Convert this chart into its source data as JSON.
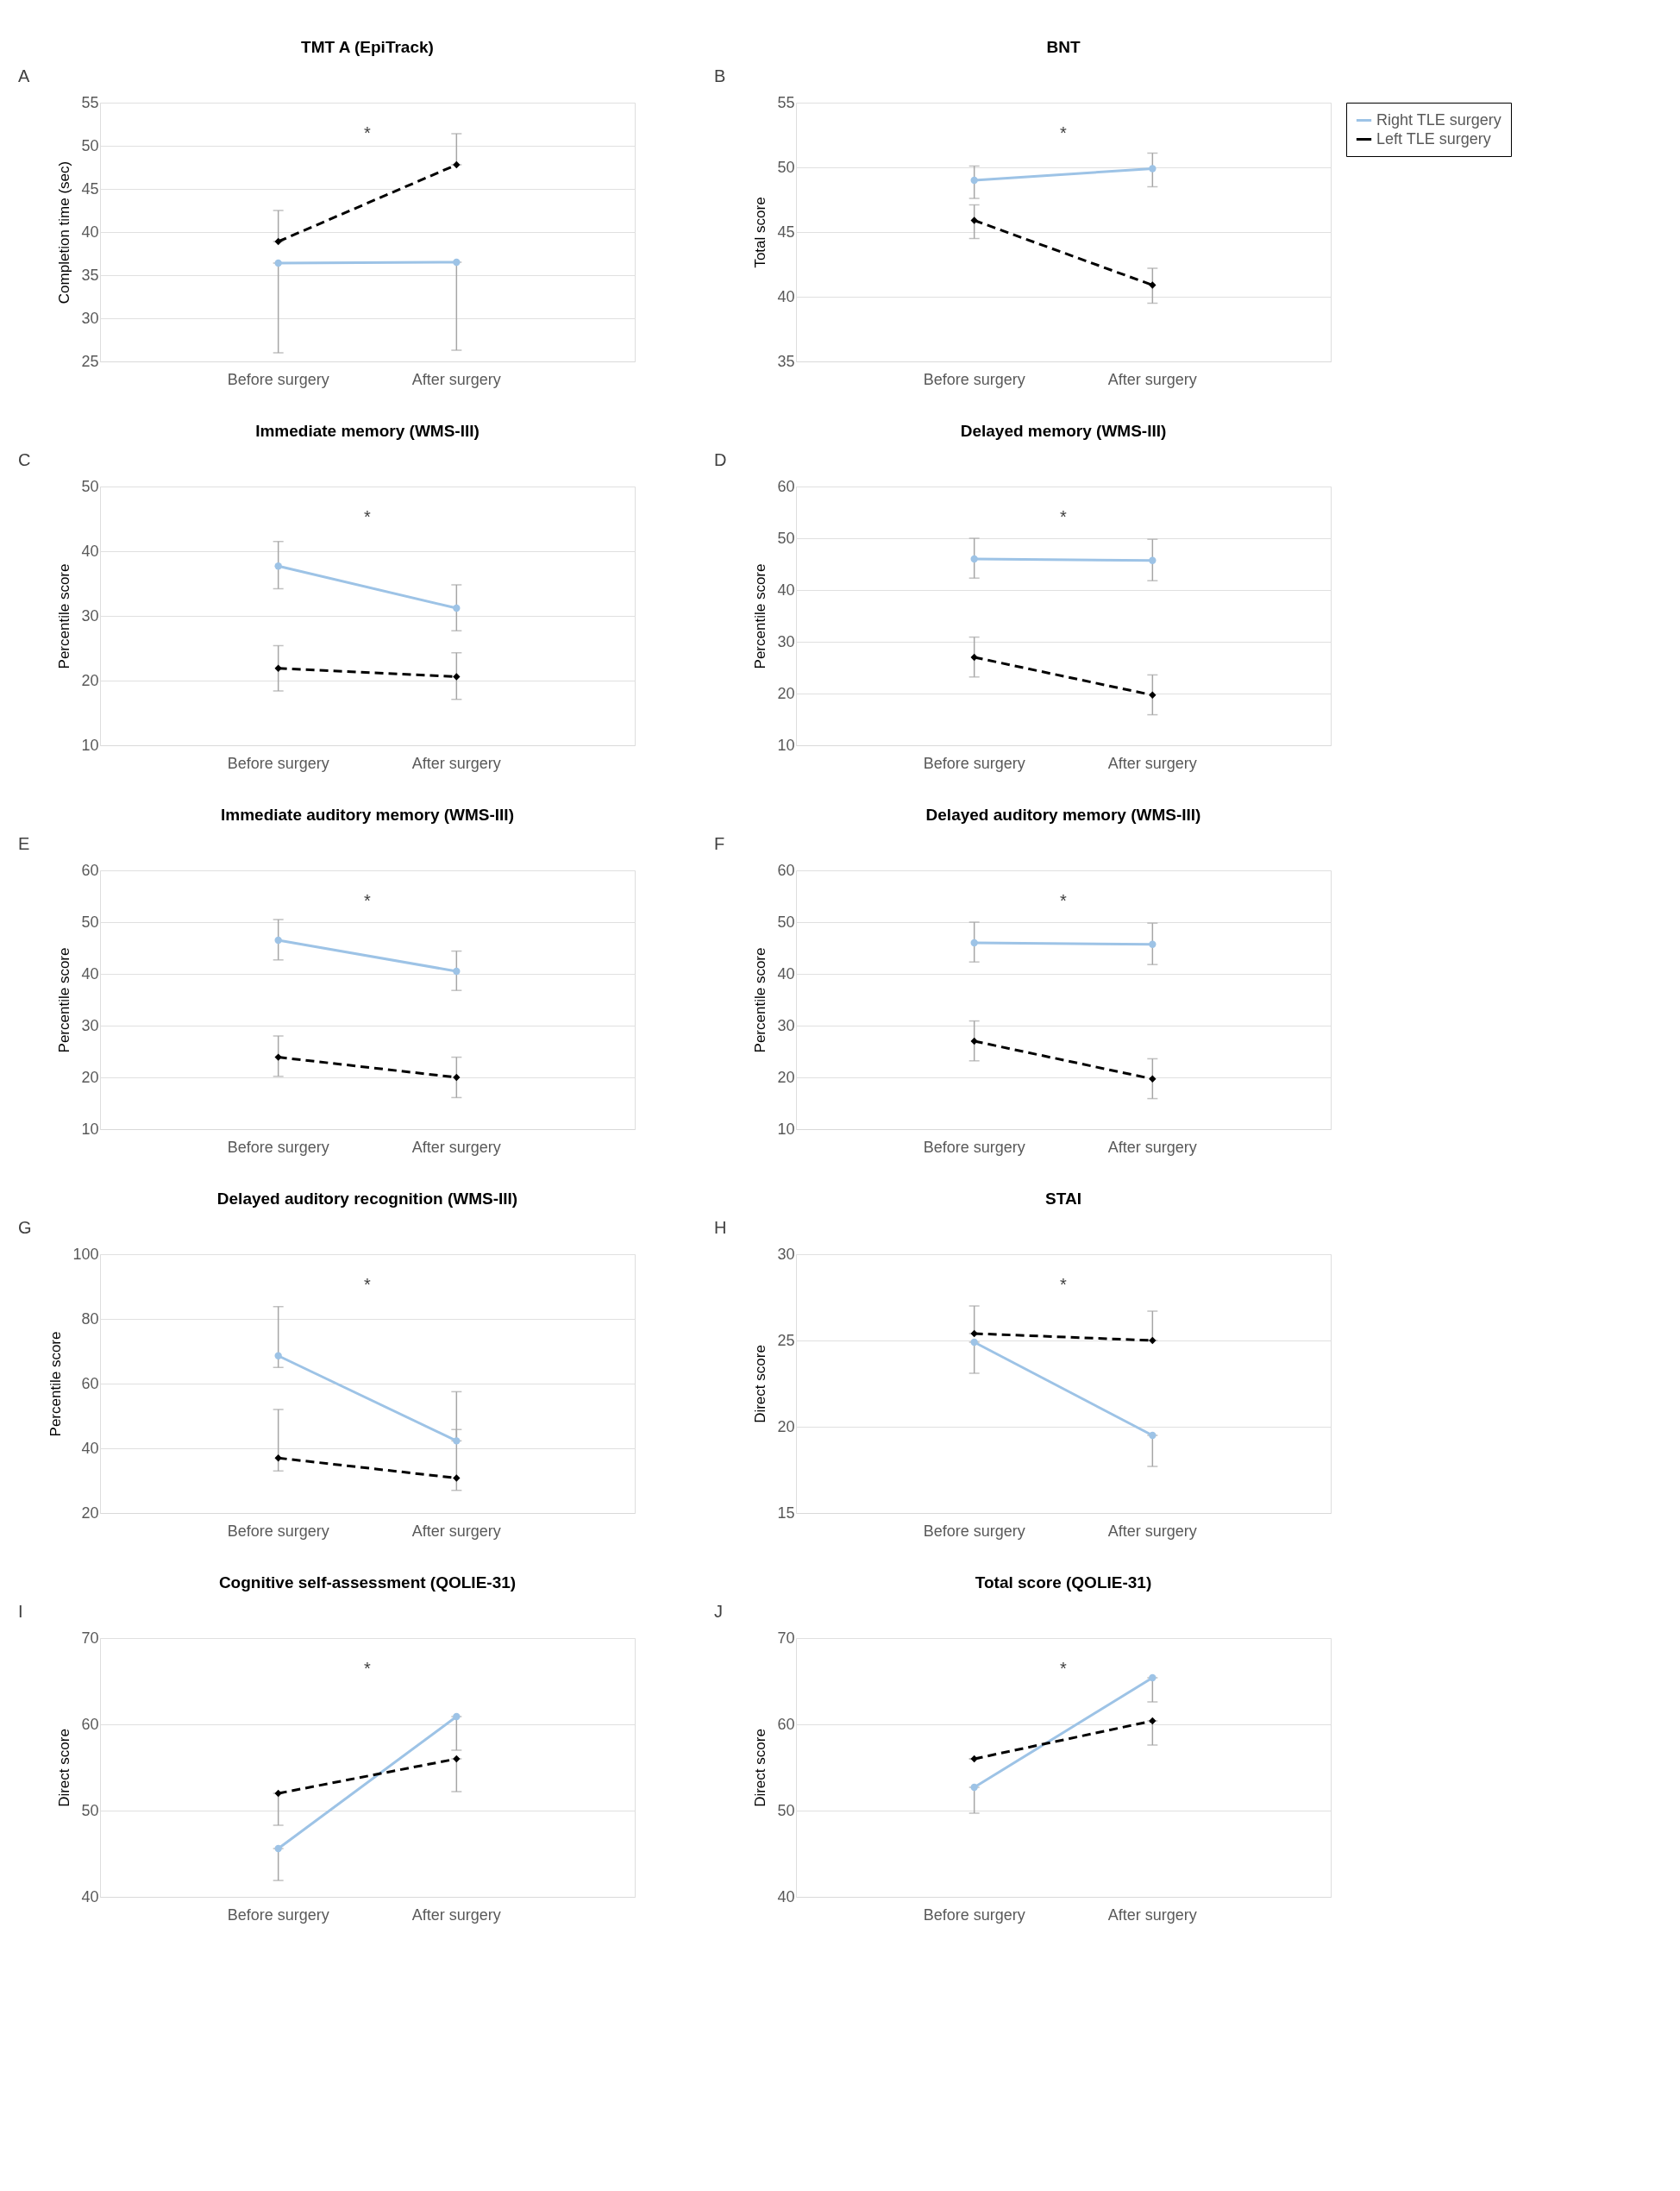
{
  "chart_data": [
    {
      "type": "line",
      "title": "TMT A (EpiTrack)",
      "ylabel": "Completion time (sec)",
      "categories": [
        "Before surgery",
        "After surgery"
      ],
      "ylim": [
        25,
        55
      ],
      "yticks": [
        25,
        30,
        35,
        40,
        45,
        50,
        55
      ],
      "grid": "y",
      "annotations": [
        "A",
        "*"
      ],
      "series": [
        {
          "color": "#9dc3e6",
          "marker": "circle",
          "line_style": "solid",
          "values": [
            36.4,
            36.5
          ],
          "errors": [
            [
              26.0,
              36.4
            ],
            [
              26.3,
              36.5
            ]
          ]
        },
        {
          "color": "#000000",
          "marker": "diamond",
          "line_style": "dashed",
          "values": [
            38.9,
            47.8
          ],
          "errors": [
            [
              38.9,
              42.5
            ],
            [
              47.8,
              51.4
            ]
          ]
        }
      ]
    },
    {
      "type": "line",
      "title": "BNT",
      "ylabel": "Total score",
      "categories": [
        "Before surgery",
        "After surgery"
      ],
      "ylim": [
        35,
        55
      ],
      "yticks": [
        35,
        40,
        45,
        50,
        55
      ],
      "grid": "y",
      "legend": "right",
      "annotations": [
        "B",
        "*"
      ],
      "series": [
        {
          "name": "Right TLE surgery",
          "color": "#9dc3e6",
          "marker": "circle",
          "line_style": "solid",
          "values": [
            49.0,
            49.9
          ],
          "errors": [
            [
              47.6,
              50.1
            ],
            [
              48.5,
              51.1
            ]
          ]
        },
        {
          "name": "Left TLE surgery",
          "color": "#000000",
          "marker": "diamond",
          "line_style": "dashed",
          "values": [
            45.9,
            40.9
          ],
          "errors": [
            [
              44.5,
              47.1
            ],
            [
              39.5,
              42.2
            ]
          ]
        }
      ]
    },
    {
      "type": "line",
      "title": "Immediate memory (WMS-III)",
      "ylabel": "Percentile score",
      "categories": [
        "Before surgery",
        "After surgery"
      ],
      "ylim": [
        10,
        50
      ],
      "yticks": [
        10,
        20,
        30,
        40,
        50
      ],
      "grid": "y",
      "annotations": [
        "C",
        "*"
      ],
      "series": [
        {
          "color": "#9dc3e6",
          "marker": "circle",
          "line_style": "solid",
          "values": [
            37.7,
            31.2
          ],
          "errors": [
            [
              34.2,
              41.5
            ],
            [
              27.7,
              34.8
            ]
          ]
        },
        {
          "color": "#000000",
          "marker": "diamond",
          "line_style": "dashed",
          "values": [
            21.9,
            20.6
          ],
          "errors": [
            [
              18.4,
              25.4
            ],
            [
              17.1,
              24.3
            ]
          ]
        }
      ]
    },
    {
      "type": "line",
      "title": "Delayed memory (WMS-III)",
      "ylabel": "Percentile score",
      "categories": [
        "Before surgery",
        "After surgery"
      ],
      "ylim": [
        10,
        60
      ],
      "yticks": [
        10,
        20,
        30,
        40,
        50,
        60
      ],
      "grid": "y",
      "annotations": [
        "D",
        "*"
      ],
      "series": [
        {
          "color": "#9dc3e6",
          "marker": "circle",
          "line_style": "solid",
          "values": [
            46.0,
            45.7
          ],
          "errors": [
            [
              42.3,
              50.0
            ],
            [
              41.8,
              49.8
            ]
          ]
        },
        {
          "color": "#000000",
          "marker": "diamond",
          "line_style": "dashed",
          "values": [
            27.0,
            19.7
          ],
          "errors": [
            [
              23.2,
              30.9
            ],
            [
              15.9,
              23.6
            ]
          ]
        }
      ]
    },
    {
      "type": "line",
      "title": "Immediate auditory memory (WMS-III)",
      "ylabel": "Percentile score",
      "categories": [
        "Before surgery",
        "After surgery"
      ],
      "ylim": [
        10,
        60
      ],
      "yticks": [
        10,
        20,
        30,
        40,
        50,
        60
      ],
      "grid": "y",
      "annotations": [
        "E",
        "*"
      ],
      "series": [
        {
          "color": "#9dc3e6",
          "marker": "circle",
          "line_style": "solid",
          "values": [
            46.5,
            40.5
          ],
          "errors": [
            [
              42.7,
              50.5
            ],
            [
              36.8,
              44.4
            ]
          ]
        },
        {
          "color": "#000000",
          "marker": "diamond",
          "line_style": "dashed",
          "values": [
            23.9,
            20.0
          ],
          "errors": [
            [
              20.2,
              28.0
            ],
            [
              16.1,
              23.9
            ]
          ]
        }
      ]
    },
    {
      "type": "line",
      "title": "Delayed auditory memory (WMS-III)",
      "ylabel": "Percentile score",
      "categories": [
        "Before surgery",
        "After surgery"
      ],
      "ylim": [
        10,
        60
      ],
      "yticks": [
        10,
        20,
        30,
        40,
        50,
        60
      ],
      "grid": "y",
      "annotations": [
        "F",
        "*"
      ],
      "series": [
        {
          "color": "#9dc3e6",
          "marker": "circle",
          "line_style": "solid",
          "values": [
            46.0,
            45.7
          ],
          "errors": [
            [
              42.3,
              50.0
            ],
            [
              41.8,
              49.8
            ]
          ]
        },
        {
          "color": "#000000",
          "marker": "diamond",
          "line_style": "dashed",
          "values": [
            27.0,
            19.7
          ],
          "errors": [
            [
              23.2,
              30.9
            ],
            [
              15.9,
              23.6
            ]
          ]
        }
      ]
    },
    {
      "type": "line",
      "title": "Delayed auditory recognition (WMS-III)",
      "ylabel": "Percentile score",
      "categories": [
        "Before surgery",
        "After surgery"
      ],
      "ylim": [
        20,
        100
      ],
      "yticks": [
        20,
        40,
        60,
        80,
        100
      ],
      "grid": "y",
      "annotations": [
        "G",
        "*"
      ],
      "series": [
        {
          "color": "#9dc3e6",
          "marker": "circle",
          "line_style": "solid",
          "values": [
            68.6,
            42.3
          ],
          "errors": [
            [
              65.0,
              83.8
            ],
            [
              42.3,
              57.5
            ]
          ]
        },
        {
          "color": "#000000",
          "marker": "diamond",
          "line_style": "dashed",
          "values": [
            37.0,
            30.8
          ],
          "errors": [
            [
              33.0,
              52.0
            ],
            [
              27.0,
              45.8
            ]
          ]
        }
      ]
    },
    {
      "type": "line",
      "title": "STAI",
      "ylabel": "Direct score",
      "categories": [
        "Before surgery",
        "After surgery"
      ],
      "ylim": [
        15,
        30
      ],
      "yticks": [
        15,
        20,
        25,
        30
      ],
      "grid": "y",
      "annotations": [
        "H",
        "*"
      ],
      "series": [
        {
          "color": "#000000",
          "marker": "diamond",
          "line_style": "dashed",
          "values": [
            25.4,
            25.0
          ],
          "errors": [
            [
              25.4,
              27.0
            ],
            [
              25.0,
              26.7
            ]
          ]
        },
        {
          "color": "#9dc3e6",
          "marker": "circle",
          "line_style": "solid",
          "values": [
            24.9,
            19.5
          ],
          "errors": [
            [
              23.1,
              24.9
            ],
            [
              17.7,
              19.5
            ]
          ]
        }
      ]
    },
    {
      "type": "line",
      "title": "Cognitive self-assessment (QOLIE-31)",
      "ylabel": "Direct score",
      "categories": [
        "Before surgery",
        "After surgery"
      ],
      "ylim": [
        40,
        70
      ],
      "yticks": [
        40,
        50,
        60,
        70
      ],
      "grid": "y",
      "annotations": [
        "I",
        "*"
      ],
      "series": [
        {
          "color": "#9dc3e6",
          "marker": "circle",
          "line_style": "solid",
          "values": [
            45.6,
            60.9
          ],
          "errors": [
            [
              41.9,
              45.6
            ],
            [
              57.0,
              60.9
            ]
          ]
        },
        {
          "color": "#000000",
          "marker": "diamond",
          "line_style": "dashed",
          "values": [
            52.0,
            56.0
          ],
          "errors": [
            [
              48.3,
              52.0
            ],
            [
              52.2,
              56.0
            ]
          ]
        }
      ]
    },
    {
      "type": "line",
      "title": "Total score (QOLIE-31)",
      "ylabel": "Direct score",
      "categories": [
        "Before surgery",
        "After surgery"
      ],
      "ylim": [
        40,
        70
      ],
      "yticks": [
        40,
        50,
        60,
        70
      ],
      "grid": "y",
      "annotations": [
        "J",
        "*"
      ],
      "series": [
        {
          "color": "#9dc3e6",
          "marker": "circle",
          "line_style": "solid",
          "values": [
            52.7,
            65.4
          ],
          "errors": [
            [
              49.7,
              52.7
            ],
            [
              62.6,
              65.4
            ]
          ]
        },
        {
          "color": "#000000",
          "marker": "diamond",
          "line_style": "dashed",
          "values": [
            56.0,
            60.4
          ],
          "errors": [
            [
              56.0,
              56.0
            ],
            [
              57.6,
              60.4
            ]
          ]
        }
      ]
    }
  ]
}
